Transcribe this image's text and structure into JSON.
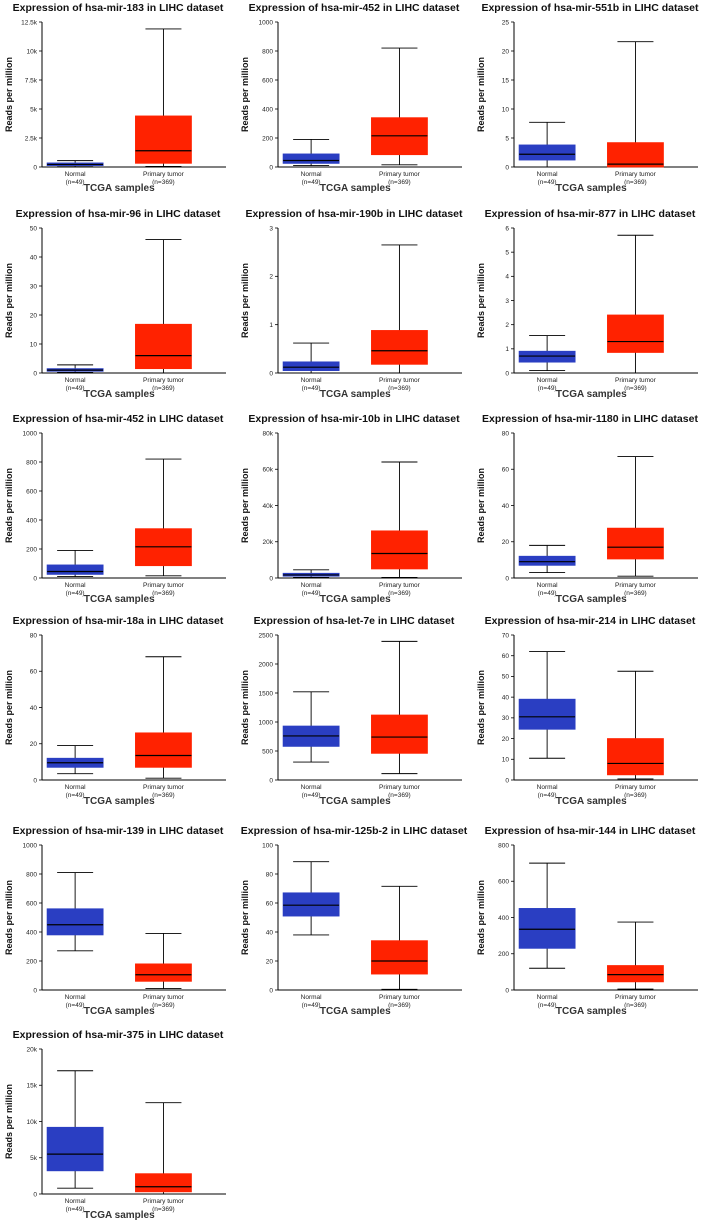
{
  "figure": {
    "colors": {
      "normal": "#2a3ec2",
      "tumor": "#ff2200",
      "axis": "#000000"
    }
  },
  "chart_data": [
    {
      "type": "boxplot",
      "title": "Expression of hsa-mir-183 in LIHC dataset",
      "xlabel": "TCGA samples",
      "ylabel": "Reads per million",
      "ylim": [
        0,
        12500
      ],
      "yticks": [
        0,
        2500,
        5000,
        7500,
        10000,
        12500
      ],
      "ytick_labels": [
        "0",
        "2.5k",
        "5k",
        "7.5k",
        "10k",
        "12.5k"
      ],
      "categories": [
        "Normal",
        "Primary tumor"
      ],
      "category_counts": [
        "(n=49)",
        "(n=369)"
      ],
      "series": [
        {
          "name": "Normal",
          "min": 30,
          "q1": 120,
          "median": 220,
          "q3": 350,
          "max": 550
        },
        {
          "name": "Primary tumor",
          "min": 50,
          "q1": 320,
          "median": 1400,
          "q3": 4400,
          "max": 11900
        }
      ]
    },
    {
      "type": "boxplot",
      "title": "Expression of hsa-mir-452 in LIHC dataset",
      "xlabel": "TCGA samples",
      "ylabel": "Reads per million",
      "ylim": [
        0,
        1000
      ],
      "yticks": [
        0,
        200,
        400,
        600,
        800,
        1000
      ],
      "ytick_labels": [
        "0",
        "200",
        "400",
        "600",
        "800",
        "1000"
      ],
      "categories": [
        "Normal",
        "Primary tumor"
      ],
      "category_counts": [
        "(n=49)",
        "(n=369)"
      ],
      "series": [
        {
          "name": "Normal",
          "min": 10,
          "q1": 25,
          "median": 45,
          "q3": 90,
          "max": 190
        },
        {
          "name": "Primary tumor",
          "min": 15,
          "q1": 85,
          "median": 215,
          "q3": 340,
          "max": 820
        }
      ]
    },
    {
      "type": "boxplot",
      "title": "Expression of hsa-mir-551b in LIHC dataset",
      "xlabel": "TCGA samples",
      "ylabel": "Reads per million",
      "ylim": [
        0,
        25
      ],
      "yticks": [
        0,
        5,
        10,
        15,
        20,
        25
      ],
      "ytick_labels": [
        "0",
        "5",
        "10",
        "15",
        "20",
        "25"
      ],
      "categories": [
        "Normal",
        "Primary tumor"
      ],
      "category_counts": [
        "(n=49)",
        "(n=369)"
      ],
      "series": [
        {
          "name": "Normal",
          "min": 0,
          "q1": 1.2,
          "median": 2.2,
          "q3": 3.8,
          "max": 7.7
        },
        {
          "name": "Primary tumor",
          "min": 0,
          "q1": 0,
          "median": 0.5,
          "q3": 4.2,
          "max": 21.6
        }
      ]
    },
    {
      "type": "boxplot",
      "title": "Expression of hsa-mir-96 in LIHC dataset",
      "xlabel": "TCGA samples",
      "ylabel": "Reads per million",
      "ylim": [
        0,
        50
      ],
      "yticks": [
        0,
        10,
        20,
        30,
        40,
        50
      ],
      "ytick_labels": [
        "0",
        "10",
        "20",
        "30",
        "40",
        "50"
      ],
      "categories": [
        "Normal",
        "Primary tumor"
      ],
      "category_counts": [
        "(n=49)",
        "(n=369)"
      ],
      "series": [
        {
          "name": "Normal",
          "min": 0.2,
          "q1": 0.6,
          "median": 1.0,
          "q3": 1.5,
          "max": 2.8
        },
        {
          "name": "Primary tumor",
          "min": 0,
          "q1": 1.5,
          "median": 6.0,
          "q3": 16.8,
          "max": 46
        }
      ]
    },
    {
      "type": "boxplot",
      "title": "Expression of hsa-mir-190b in LIHC dataset",
      "xlabel": "TCGA samples",
      "ylabel": "Reads per million",
      "ylim": [
        0,
        3
      ],
      "yticks": [
        0,
        1,
        2,
        3
      ],
      "ytick_labels": [
        "0",
        "1",
        "2",
        "3"
      ],
      "categories": [
        "Normal",
        "Primary tumor"
      ],
      "category_counts": [
        "(n=49)",
        "(n=369)"
      ],
      "series": [
        {
          "name": "Normal",
          "min": 0,
          "q1": 0.05,
          "median": 0.12,
          "q3": 0.23,
          "max": 0.62
        },
        {
          "name": "Primary tumor",
          "min": 0,
          "q1": 0.18,
          "median": 0.46,
          "q3": 0.88,
          "max": 2.65
        }
      ]
    },
    {
      "type": "boxplot",
      "title": "Expression of hsa-mir-877 in LIHC dataset",
      "xlabel": "TCGA samples",
      "ylabel": "Reads per million",
      "ylim": [
        0,
        6
      ],
      "yticks": [
        0,
        1,
        2,
        3,
        4,
        5,
        6
      ],
      "ytick_labels": [
        "0",
        "1",
        "2",
        "3",
        "4",
        "5",
        "6"
      ],
      "categories": [
        "Normal",
        "Primary tumor"
      ],
      "category_counts": [
        "(n=49)",
        "(n=369)"
      ],
      "series": [
        {
          "name": "Normal",
          "min": 0.1,
          "q1": 0.45,
          "median": 0.7,
          "q3": 0.9,
          "max": 1.55
        },
        {
          "name": "Primary tumor",
          "min": 0,
          "q1": 0.85,
          "median": 1.3,
          "q3": 2.4,
          "max": 5.7
        }
      ]
    },
    {
      "type": "boxplot",
      "title": "Expression of hsa-mir-452 in LIHC dataset",
      "xlabel": "TCGA samples",
      "ylabel": "Reads per million",
      "ylim": [
        0,
        1000
      ],
      "yticks": [
        0,
        200,
        400,
        600,
        800,
        1000
      ],
      "ytick_labels": [
        "0",
        "200",
        "400",
        "600",
        "800",
        "1000"
      ],
      "categories": [
        "Normal",
        "Primary tumor"
      ],
      "category_counts": [
        "(n=49)",
        "(n=369)"
      ],
      "series": [
        {
          "name": "Normal",
          "min": 10,
          "q1": 25,
          "median": 45,
          "q3": 90,
          "max": 190
        },
        {
          "name": "Primary tumor",
          "min": 15,
          "q1": 85,
          "median": 215,
          "q3": 340,
          "max": 820
        }
      ]
    },
    {
      "type": "boxplot",
      "title": "Expression of hsa-mir-10b in LIHC dataset",
      "xlabel": "TCGA samples",
      "ylabel": "Reads per million",
      "ylim": [
        0,
        80000
      ],
      "yticks": [
        0,
        20000,
        40000,
        60000,
        80000
      ],
      "ytick_labels": [
        "0",
        "20k",
        "40k",
        "60k",
        "80k"
      ],
      "categories": [
        "Normal",
        "Primary tumor"
      ],
      "category_counts": [
        "(n=49)",
        "(n=369)"
      ],
      "series": [
        {
          "name": "Normal",
          "min": 300,
          "q1": 1000,
          "median": 1700,
          "q3": 2600,
          "max": 4500
        },
        {
          "name": "Primary tumor",
          "min": 300,
          "q1": 5000,
          "median": 13500,
          "q3": 26000,
          "max": 64000
        }
      ]
    },
    {
      "type": "boxplot",
      "title": "Expression of hsa-mir-1180 in LIHC dataset",
      "xlabel": "TCGA samples",
      "ylabel": "Reads per million",
      "ylim": [
        0,
        80
      ],
      "yticks": [
        0,
        20,
        40,
        60,
        80
      ],
      "ytick_labels": [
        "0",
        "20",
        "40",
        "60",
        "80"
      ],
      "categories": [
        "Normal",
        "Primary tumor"
      ],
      "category_counts": [
        "(n=49)",
        "(n=369)"
      ],
      "series": [
        {
          "name": "Normal",
          "min": 3,
          "q1": 7,
          "median": 9,
          "q3": 12,
          "max": 18
        },
        {
          "name": "Primary tumor",
          "min": 1,
          "q1": 10.5,
          "median": 17,
          "q3": 27.5,
          "max": 67
        }
      ]
    },
    {
      "type": "boxplot",
      "title": "Expression of hsa-mir-18a in LIHC dataset",
      "xlabel": "TCGA samples",
      "ylabel": "Reads per million",
      "ylim": [
        0,
        80
      ],
      "yticks": [
        0,
        20,
        40,
        60,
        80
      ],
      "ytick_labels": [
        "0",
        "20",
        "40",
        "60",
        "80"
      ],
      "categories": [
        "Normal",
        "Primary tumor"
      ],
      "category_counts": [
        "(n=49)",
        "(n=369)"
      ],
      "series": [
        {
          "name": "Normal",
          "min": 3.5,
          "q1": 7,
          "median": 9.5,
          "q3": 12,
          "max": 19
        },
        {
          "name": "Primary tumor",
          "min": 1,
          "q1": 7,
          "median": 13.5,
          "q3": 26,
          "max": 68
        }
      ]
    },
    {
      "type": "boxplot",
      "title": "Expression of hsa-let-7e in LIHC dataset",
      "xlabel": "TCGA samples",
      "ylabel": "Reads per million",
      "ylim": [
        0,
        2500
      ],
      "yticks": [
        0,
        500,
        1000,
        1500,
        2000,
        2500
      ],
      "ytick_labels": [
        "0",
        "500",
        "1000",
        "1500",
        "2000",
        "2500"
      ],
      "categories": [
        "Normal",
        "Primary tumor"
      ],
      "category_counts": [
        "(n=49)",
        "(n=369)"
      ],
      "series": [
        {
          "name": "Normal",
          "min": 310,
          "q1": 580,
          "median": 760,
          "q3": 930,
          "max": 1520
        },
        {
          "name": "Primary tumor",
          "min": 110,
          "q1": 460,
          "median": 740,
          "q3": 1120,
          "max": 2390
        }
      ]
    },
    {
      "type": "boxplot",
      "title": "Expression of hsa-mir-214 in LIHC dataset",
      "xlabel": "TCGA samples",
      "ylabel": "Reads per million",
      "ylim": [
        0,
        70
      ],
      "yticks": [
        0,
        10,
        20,
        30,
        40,
        50,
        60,
        70
      ],
      "ytick_labels": [
        "0",
        "10",
        "20",
        "30",
        "40",
        "50",
        "60",
        "70"
      ],
      "categories": [
        "Normal",
        "Primary tumor"
      ],
      "category_counts": [
        "(n=49)",
        "(n=369)"
      ],
      "series": [
        {
          "name": "Normal",
          "min": 10.5,
          "q1": 24.5,
          "median": 30.5,
          "q3": 39,
          "max": 62
        },
        {
          "name": "Primary tumor",
          "min": 0.5,
          "q1": 2.5,
          "median": 8,
          "q3": 20,
          "max": 52.5
        }
      ]
    },
    {
      "type": "boxplot",
      "title": "Expression of hsa-mir-139 in LIHC dataset",
      "xlabel": "TCGA samples",
      "ylabel": "Reads per million",
      "ylim": [
        0,
        1000
      ],
      "yticks": [
        0,
        200,
        400,
        600,
        800,
        1000
      ],
      "ytick_labels": [
        "0",
        "200",
        "400",
        "600",
        "800",
        "1000"
      ],
      "categories": [
        "Normal",
        "Primary tumor"
      ],
      "category_counts": [
        "(n=49)",
        "(n=369)"
      ],
      "series": [
        {
          "name": "Normal",
          "min": 270,
          "q1": 380,
          "median": 450,
          "q3": 560,
          "max": 810
        },
        {
          "name": "Primary tumor",
          "min": 10,
          "q1": 60,
          "median": 105,
          "q3": 180,
          "max": 390
        }
      ]
    },
    {
      "type": "boxplot",
      "title": "Expression of hsa-mir-125b-2 in LIHC dataset",
      "xlabel": "TCGA samples",
      "ylabel": "Reads per million",
      "ylim": [
        0,
        100
      ],
      "yticks": [
        0,
        20,
        40,
        60,
        80,
        100
      ],
      "ytick_labels": [
        "0",
        "20",
        "40",
        "60",
        "80",
        "100"
      ],
      "categories": [
        "Normal",
        "Primary tumor"
      ],
      "category_counts": [
        "(n=49)",
        "(n=369)"
      ],
      "series": [
        {
          "name": "Normal",
          "min": 38,
          "q1": 51,
          "median": 58.5,
          "q3": 67,
          "max": 88.5
        },
        {
          "name": "Primary tumor",
          "min": 0.5,
          "q1": 11,
          "median": 20,
          "q3": 34,
          "max": 71.5
        }
      ]
    },
    {
      "type": "boxplot",
      "title": "Expression of hsa-mir-144 in LIHC dataset",
      "xlabel": "TCGA samples",
      "ylabel": "Reads per million",
      "ylim": [
        0,
        800
      ],
      "yticks": [
        0,
        200,
        400,
        600,
        800
      ],
      "ytick_labels": [
        "0",
        "200",
        "400",
        "600",
        "800"
      ],
      "categories": [
        "Normal",
        "Primary tumor"
      ],
      "category_counts": [
        "(n=49)",
        "(n=369)"
      ],
      "series": [
        {
          "name": "Normal",
          "min": 120,
          "q1": 230,
          "median": 335,
          "q3": 450,
          "max": 700
        },
        {
          "name": "Primary tumor",
          "min": 5,
          "q1": 45,
          "median": 85,
          "q3": 135,
          "max": 375
        }
      ]
    },
    {
      "type": "boxplot",
      "title": "Expression of hsa-mir-375 in LIHC dataset",
      "xlabel": "TCGA samples",
      "ylabel": "Reads per million",
      "ylim": [
        0,
        20000
      ],
      "yticks": [
        0,
        5000,
        10000,
        15000,
        20000
      ],
      "ytick_labels": [
        "0",
        "5k",
        "10k",
        "15k",
        "20k"
      ],
      "categories": [
        "Normal",
        "Primary tumor"
      ],
      "category_counts": [
        "(n=49)",
        "(n=369)"
      ],
      "series": [
        {
          "name": "Normal",
          "min": 800,
          "q1": 3200,
          "median": 5500,
          "q3": 9200,
          "max": 17000
        },
        {
          "name": "Primary tumor",
          "min": 0,
          "q1": 300,
          "median": 1000,
          "q3": 2800,
          "max": 12600
        }
      ]
    }
  ]
}
